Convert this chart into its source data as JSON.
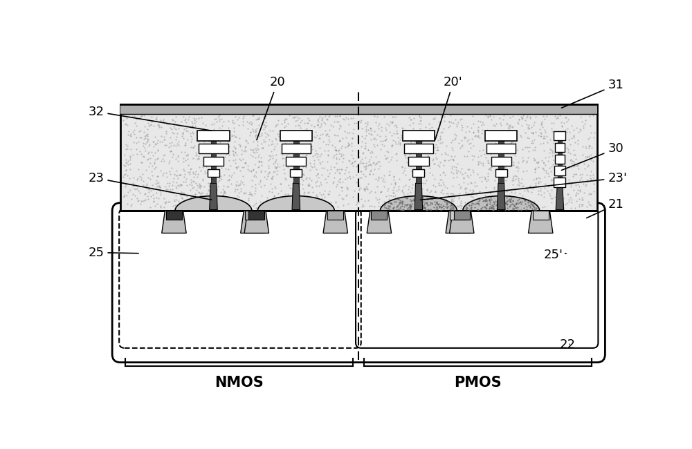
{
  "bg_color": "#ffffff",
  "dielectric_bg": "#e8e8e8",
  "dielectric_dot_color": "#888888",
  "top_bar_color": "#b0b0b0",
  "substrate_color": "#ffffff",
  "light_gray": "#c0c0c0",
  "mid_gray": "#909090",
  "dark_gray": "#505050",
  "very_dark": "#282828",
  "gate_color": "#555555",
  "nmos_sd_left": "#333333",
  "nmos_sd_right": "#aaaaaa",
  "pmos_sd_left": "#888888",
  "pmos_sd_right": "#cccccc",
  "nmos_epi": "#c8c8c8",
  "pmos_epi_dot": "#b8b8b8",
  "nmos_label": "NMOS",
  "pmos_label": "PMOS",
  "label_fontsize": 13,
  "bracket_fontsize": 15
}
